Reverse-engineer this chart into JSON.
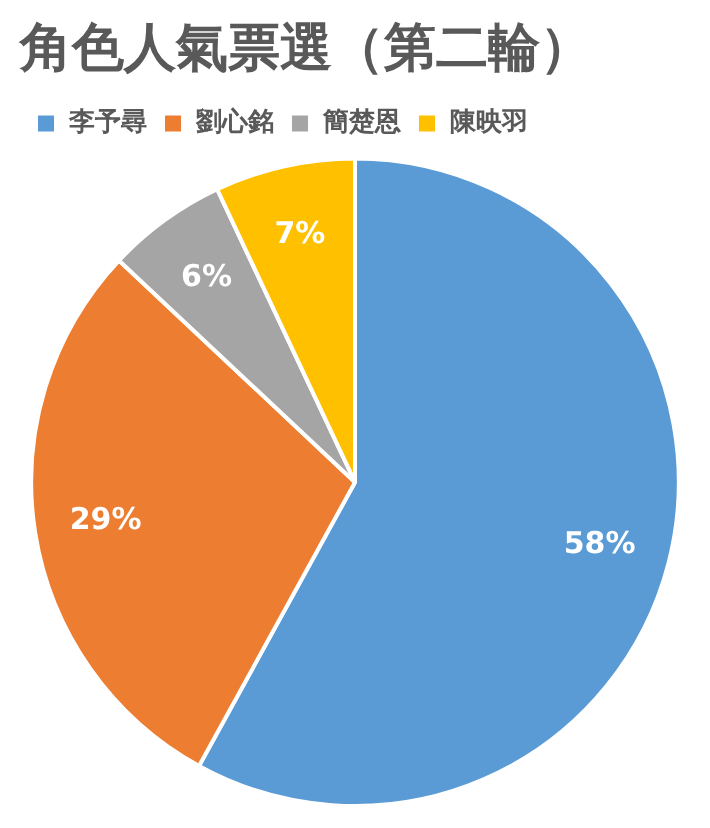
{
  "chart_data": {
    "type": "pie",
    "title": "角色人氣票選（第二輪）",
    "categories": [
      "李予尋",
      "劉心銘",
      "簡楚恩",
      "陳映羽"
    ],
    "values": [
      58,
      29,
      6,
      7
    ],
    "colors": [
      "#5b9bd5",
      "#ed7d31",
      "#a5a5a5",
      "#ffc000"
    ],
    "value_labels": [
      "58%",
      "29%",
      "6%",
      "7%"
    ],
    "legend": "top left"
  }
}
